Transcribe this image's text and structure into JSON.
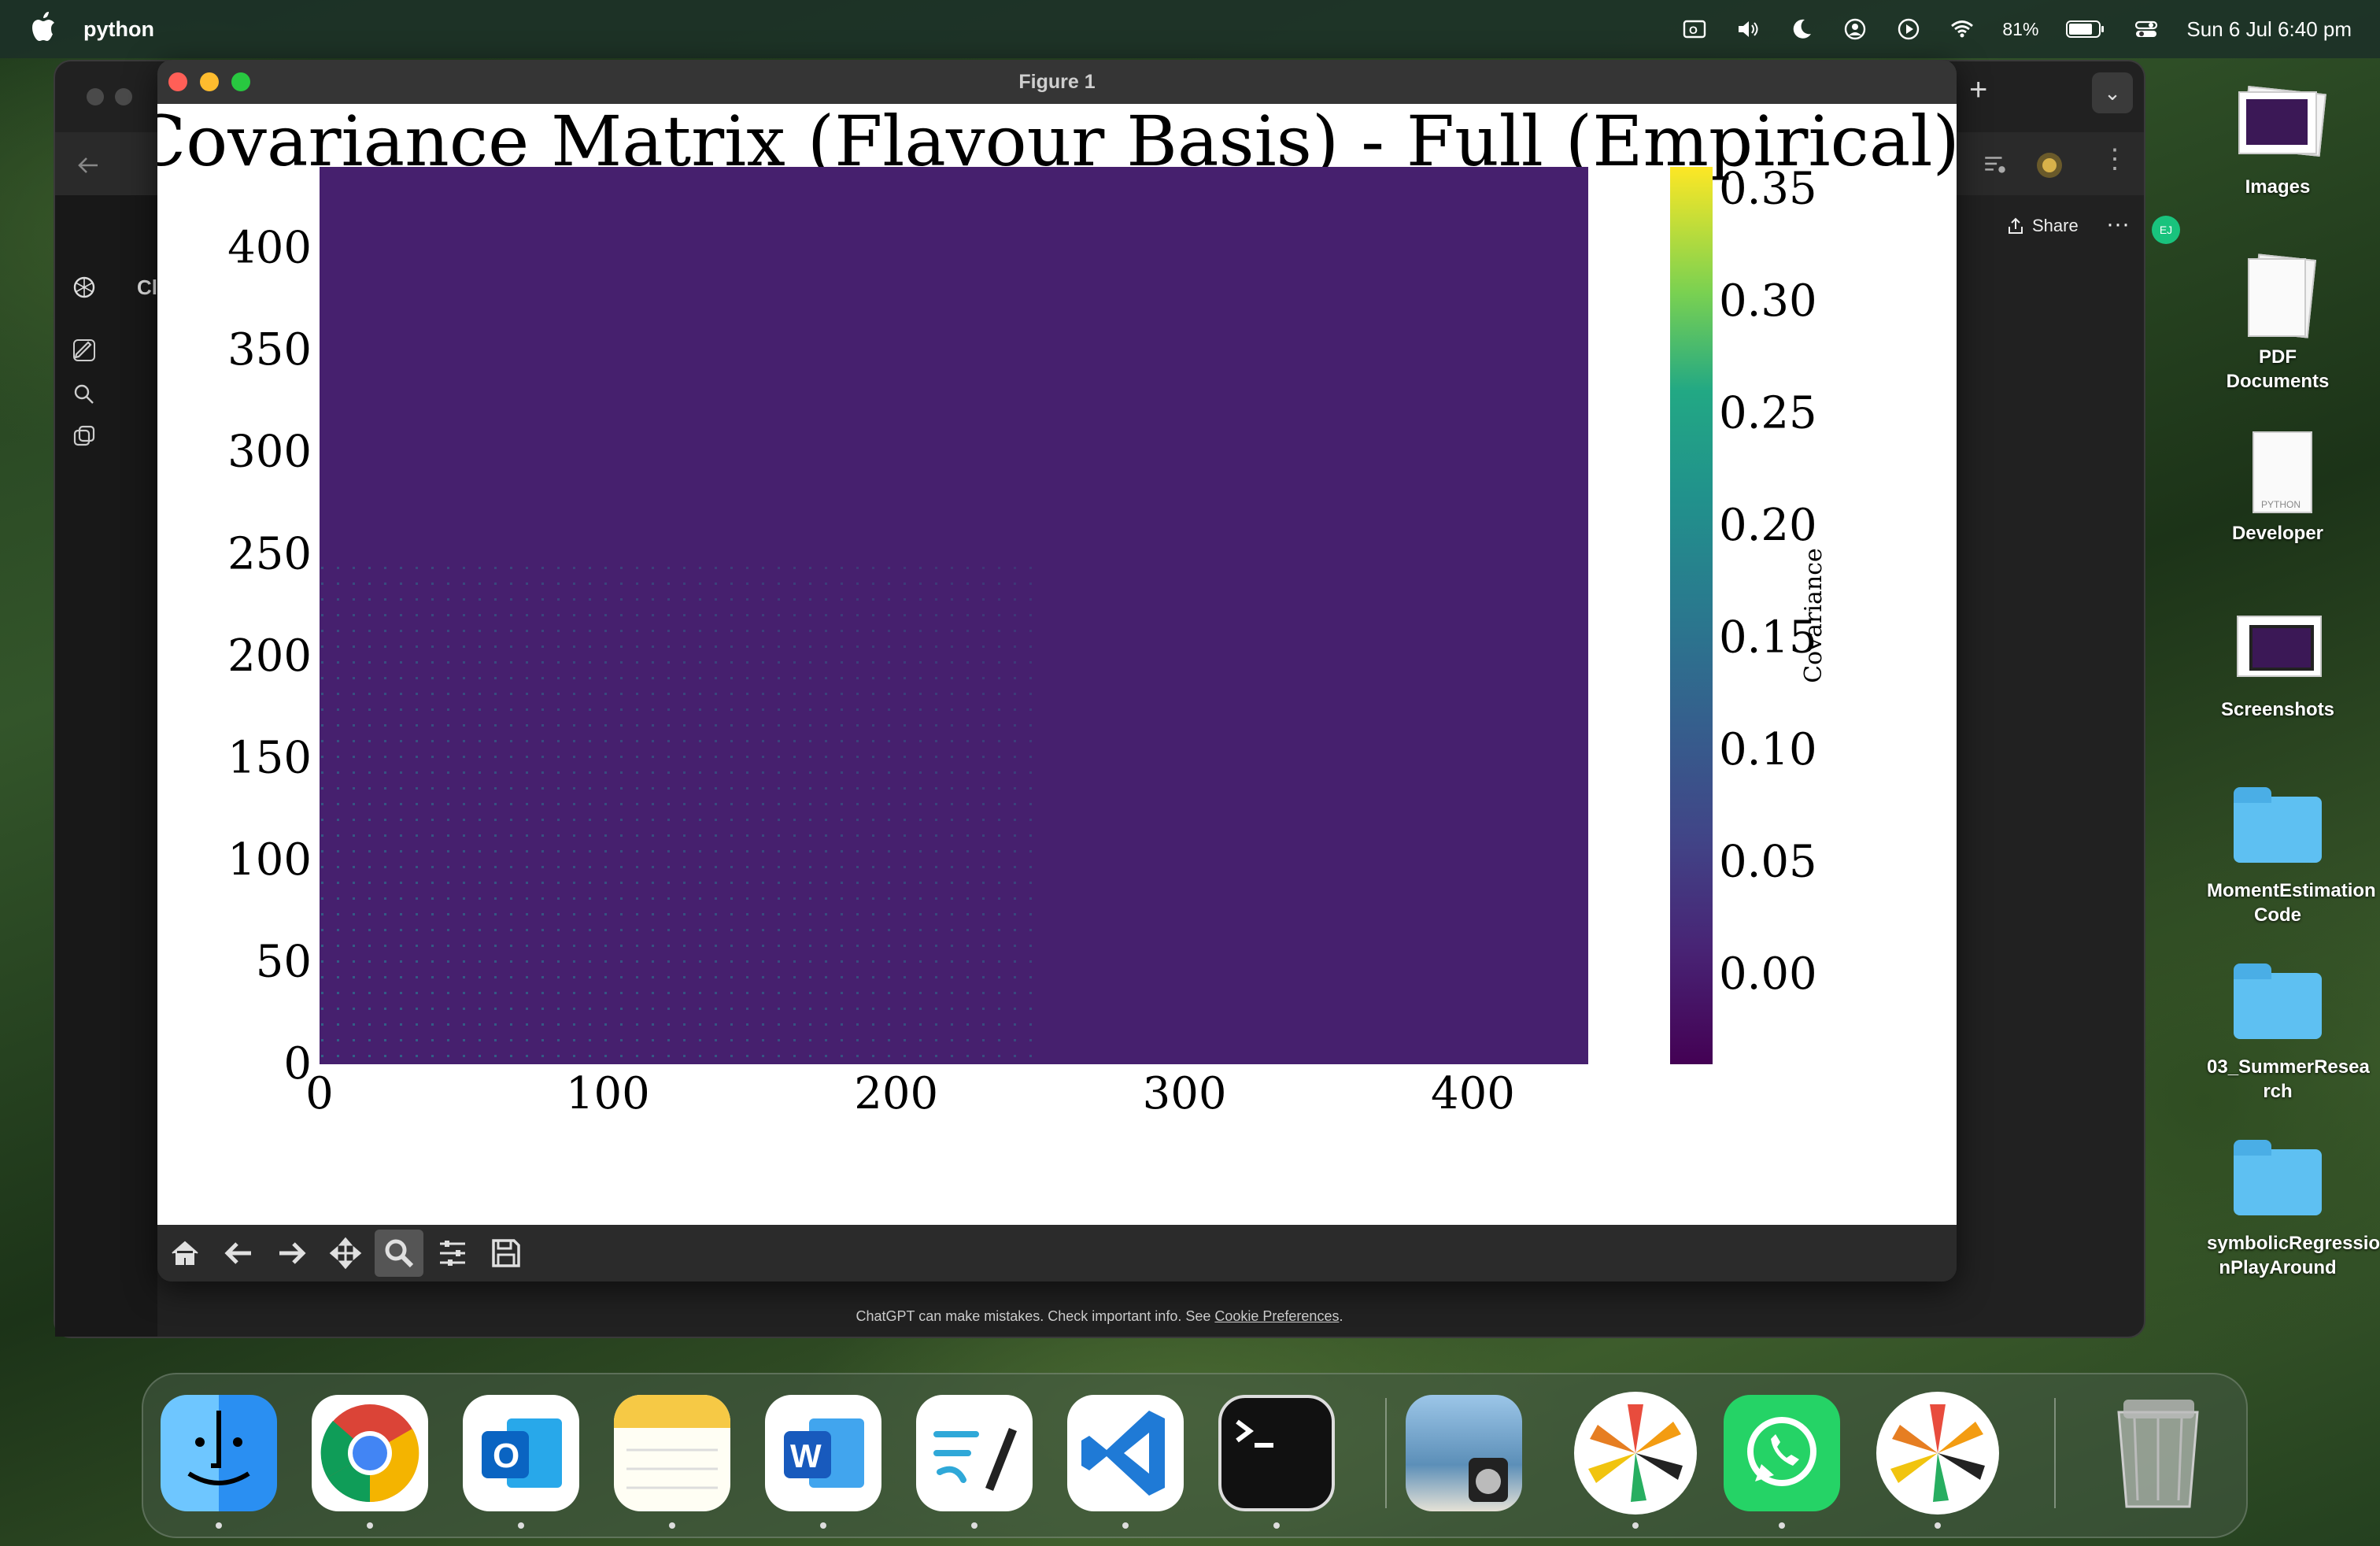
{
  "menubar": {
    "app_name": "python",
    "battery": "81%",
    "datetime": "Sun 6 Jul  6:40 pm",
    "icons": [
      "outlook-icon",
      "volume-icon",
      "moon-icon",
      "user-icon",
      "play-icon",
      "wifi-icon",
      "battery-icon",
      "control-center-icon"
    ]
  },
  "browser": {
    "partial_text": "Cl",
    "share_label": "Share",
    "more_label": "···",
    "avatar_initials": "EJ",
    "disclaimer_text": "ChatGPT can make mistakes. Check important info. See ",
    "disclaimer_link": "Cookie Preferences",
    "disclaimer_end": "."
  },
  "figure_window": {
    "title": "Figure 1",
    "toolbar": [
      "home-icon",
      "back-arrow-icon",
      "forward-arrow-icon",
      "pan-icon",
      "zoom-icon",
      "subplots-icon",
      "save-icon"
    ],
    "active_tool": "zoom-icon"
  },
  "chart_data": {
    "type": "heatmap",
    "title": "PDF Covariance Matrix (Flavour Basis) - Full (Empirical)",
    "x_ticks": [
      "0",
      "100",
      "200",
      "300",
      "400"
    ],
    "y_ticks": [
      "0",
      "50",
      "100",
      "150",
      "200",
      "250",
      "300",
      "350",
      "400"
    ],
    "xlim": [
      0,
      440
    ],
    "ylim": [
      0,
      440
    ],
    "colorbar_label": "Covariance",
    "colorbar_ticks": [
      "0.00",
      "0.05",
      "0.10",
      "0.15",
      "0.20",
      "0.25",
      "0.30",
      "0.35"
    ],
    "colorbar_range": [
      -0.04,
      0.36
    ],
    "colormap": "viridis",
    "background_value": 0.0,
    "structure": "sparse periodic diagonal blocks with small positive values concentrated in lower-left region (x 0–250, y 0–250); remainder near 0",
    "grid": false
  },
  "desktop_icons": [
    {
      "label": "Images"
    },
    {
      "label": "PDF Documents"
    },
    {
      "label": "Developer",
      "badge": "PYTHON"
    },
    {
      "label": "Screenshots"
    },
    {
      "label": "MomentEstimation Code"
    },
    {
      "label": "03_SummerResea rch"
    },
    {
      "label": "symbolicRegressio nPlayAround"
    }
  ],
  "dock": {
    "apps": [
      "Finder",
      "Chrome",
      "Outlook",
      "Notes",
      "Word",
      "Freeform",
      "VS Code",
      "Terminal",
      "Preview",
      "Spectrum",
      "WhatsApp",
      "Spectrum",
      "Trash"
    ]
  },
  "colors": {
    "viridis_low": "#440154",
    "viridis_bg": "#46206e",
    "viridis_high": "#fde725"
  }
}
